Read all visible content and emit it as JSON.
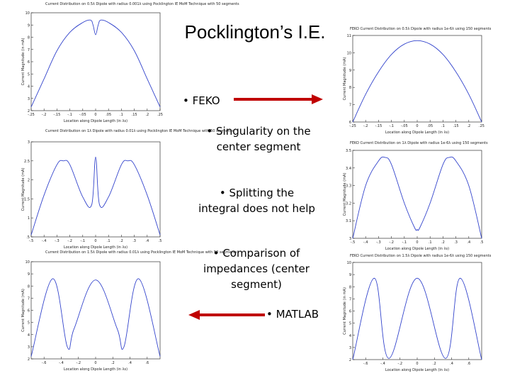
{
  "slide": {
    "title": "Pocklington’s I.E.",
    "bullets": [
      "• FEKO",
      "• Singularity on the center segment",
      "• Splitting the integral does not help",
      "• Comparison of impedances (center segment)",
      "• MATLAB"
    ],
    "arrow_color": "#c00000"
  },
  "chart_data": [
    {
      "type": "line",
      "panel": "left-1",
      "title": "Current Distribution on 0.5λ Dipole with radius 0.001λ using Pocklington IE MoM Technique with 50 segments",
      "xlabel": "Location along Dipole Length (in λs)",
      "ylabel": "Current Magnitude (in mA)",
      "xlim": [
        -0.25,
        0.25
      ],
      "ylim": [
        2,
        10
      ],
      "xticks": [
        -0.25,
        -0.2,
        -0.15,
        -0.1,
        -0.05,
        0,
        0.05,
        0.1,
        0.15,
        0.2,
        0.25
      ],
      "yticks": [
        2,
        3,
        4,
        5,
        6,
        7,
        8,
        9,
        10
      ],
      "x": [
        -0.25,
        -0.2,
        -0.15,
        -0.1,
        -0.05,
        -0.02,
        -0.01,
        0,
        0.01,
        0.02,
        0.05,
        0.1,
        0.15,
        0.2,
        0.25
      ],
      "y": [
        2.3,
        4.6,
        6.9,
        8.4,
        9.2,
        9.4,
        9.0,
        8.2,
        9.0,
        9.4,
        9.2,
        8.4,
        6.9,
        4.6,
        2.3
      ],
      "color": "#3344cc"
    },
    {
      "type": "line",
      "panel": "right-1",
      "title": "FEKO Current Distribution on 0.5λ Dipole with radius 1e-6λ using 150 segments",
      "xlabel": "Location along Dipole Length (in λs)",
      "ylabel": "Current Magnitude (mA)",
      "xlim": [
        -0.25,
        0.25
      ],
      "ylim": [
        6,
        11
      ],
      "xticks": [
        -0.25,
        -0.2,
        -0.15,
        -0.1,
        -0.05,
        0,
        0.05,
        0.1,
        0.15,
        0.2,
        0.25
      ],
      "yticks": [
        6,
        7,
        8,
        9,
        10,
        11
      ],
      "x": [
        -0.25,
        -0.2,
        -0.15,
        -0.1,
        -0.05,
        0,
        0.05,
        0.1,
        0.15,
        0.2,
        0.25
      ],
      "y": [
        6.0,
        7.6,
        8.9,
        9.9,
        10.5,
        10.7,
        10.5,
        9.9,
        8.9,
        7.6,
        6.0
      ],
      "color": "#3344cc"
    },
    {
      "type": "line",
      "panel": "left-2",
      "title": "Current Distribution on 1λ Dipole with radius 0.01λ using Pocklington IE MoM Technique with 50 segments",
      "xlabel": "Location along Dipole Length (in λs)",
      "ylabel": "Current Magnitude (mA)",
      "xlim": [
        -0.5,
        0.5
      ],
      "ylim": [
        0.5,
        3
      ],
      "xticks": [
        -0.5,
        -0.4,
        -0.3,
        -0.2,
        -0.1,
        0,
        0.1,
        0.2,
        0.3,
        0.4,
        0.5
      ],
      "yticks": [
        0.5,
        1,
        1.5,
        2,
        2.5,
        3
      ],
      "x": [
        -0.5,
        -0.4,
        -0.3,
        -0.25,
        -0.2,
        -0.1,
        -0.03,
        0,
        0.03,
        0.1,
        0.2,
        0.25,
        0.3,
        0.4,
        0.5
      ],
      "y": [
        0.55,
        1.6,
        2.4,
        2.5,
        2.4,
        1.55,
        1.35,
        2.6,
        1.35,
        1.55,
        2.4,
        2.5,
        2.4,
        1.6,
        0.55
      ],
      "color": "#3344cc"
    },
    {
      "type": "line",
      "panel": "right-2",
      "title": "FEKO Current Distribution on 1λ Dipole with radius 1e-6λ using 150 segments",
      "xlabel": "Location along Dipole Length (in λs)",
      "ylabel": "Current Magnitude (mA)",
      "xlim": [
        -0.5,
        0.5
      ],
      "ylim": [
        3.0,
        3.5
      ],
      "xticks": [
        -0.5,
        -0.4,
        -0.3,
        -0.2,
        -0.1,
        0,
        0.1,
        0.2,
        0.3,
        0.4,
        0.5
      ],
      "yticks": [
        3.0,
        3.1,
        3.2,
        3.3,
        3.4,
        3.5
      ],
      "x": [
        -0.5,
        -0.4,
        -0.3,
        -0.25,
        -0.2,
        -0.1,
        -0.02,
        0,
        0.02,
        0.1,
        0.2,
        0.25,
        0.3,
        0.4,
        0.5
      ],
      "y": [
        3.0,
        3.3,
        3.44,
        3.46,
        3.42,
        3.2,
        3.06,
        3.05,
        3.06,
        3.2,
        3.42,
        3.46,
        3.44,
        3.3,
        3.0
      ],
      "color": "#3344cc"
    },
    {
      "type": "line",
      "panel": "left-3",
      "title": "Current Distribution on 1.5λ Dipole with radius 0.01λ using Pocklington IE MoM Technique with 50 segments",
      "xlabel": "Location along Dipole Length (in λs)",
      "ylabel": "Current Magnitude (mA)",
      "xlim": [
        -0.75,
        0.75
      ],
      "ylim": [
        2,
        10
      ],
      "xticks": [
        -0.6,
        -0.4,
        -0.2,
        0,
        0.2,
        0.4,
        0.6
      ],
      "yticks": [
        2,
        3,
        4,
        5,
        6,
        7,
        8,
        9,
        10
      ],
      "x": [
        -0.75,
        -0.5,
        -0.33,
        -0.25,
        0,
        0.25,
        0.33,
        0.5,
        0.75
      ],
      "y": [
        2.2,
        8.6,
        3.0,
        4.5,
        8.5,
        4.5,
        3.0,
        8.6,
        2.2
      ],
      "color": "#3344cc"
    },
    {
      "type": "line",
      "panel": "right-3",
      "title": "FEKO Current Distribution on 1.5λ Dipole with radius 1e-6λ using 150 segments",
      "xlabel": "Location along Dipole Length (in λs)",
      "ylabel": "Current Magnitude (in mA)",
      "xlim": [
        -0.75,
        0.75
      ],
      "ylim": [
        2,
        10
      ],
      "xticks": [
        -0.6,
        -0.4,
        -0.2,
        0,
        0.2,
        0.4,
        0.6
      ],
      "yticks": [
        2,
        3,
        4,
        5,
        6,
        7,
        8,
        9,
        10
      ],
      "x": [
        -0.75,
        -0.5,
        -0.33,
        0,
        0.33,
        0.5,
        0.75
      ],
      "y": [
        2.0,
        8.7,
        2.1,
        8.7,
        2.1,
        8.7,
        2.0
      ],
      "color": "#3344cc"
    }
  ]
}
